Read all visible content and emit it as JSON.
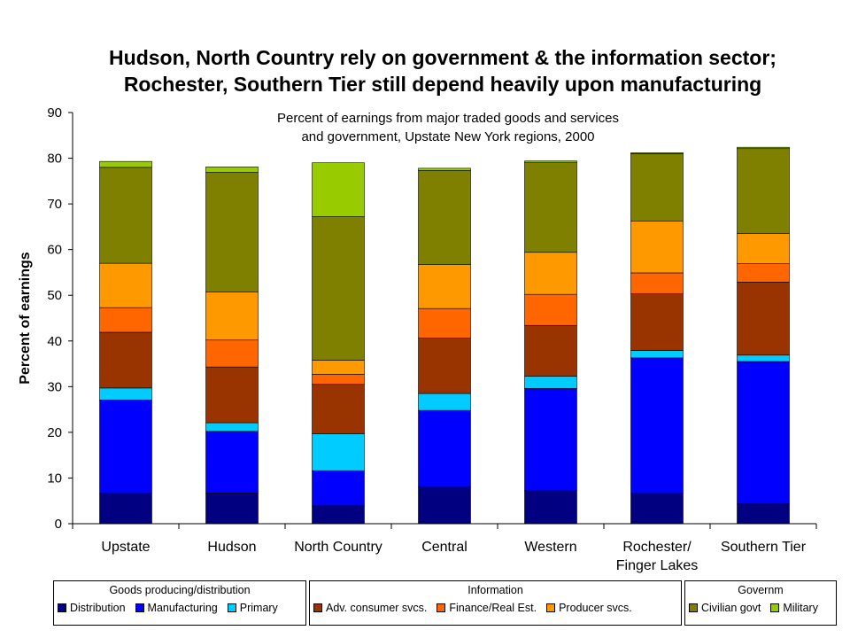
{
  "title": {
    "line1": "Hudson, North Country rely on government & the information sector;",
    "line2": "Rochester, Southern Tier still depend heavily upon manufacturing"
  },
  "chart_data": {
    "type": "bar",
    "stacked": true,
    "subtitle_line1": "Percent of earnings from major traded goods and services",
    "subtitle_line2": "and government, Upstate New York regions, 2000",
    "ylabel": "Percent of earnings",
    "ylim": [
      0,
      90
    ],
    "yticks": [
      0,
      10,
      20,
      30,
      40,
      50,
      60,
      70,
      80,
      90
    ],
    "categories": [
      "Upstate",
      "Hudson",
      "North Country",
      "Central",
      "Western",
      "Rochester/ Finger Lakes",
      "Southern Tier"
    ],
    "category_lines": [
      [
        "Upstate"
      ],
      [
        "Hudson"
      ],
      [
        "North Country"
      ],
      [
        "Central"
      ],
      [
        "Western"
      ],
      [
        "Rochester/",
        "Finger Lakes"
      ],
      [
        "Southern Tier"
      ]
    ],
    "series": [
      {
        "name": "Distribution",
        "color": "#000080",
        "values": [
          6.6,
          6.7,
          3.9,
          8.1,
          7.3,
          6.6,
          4.3
        ]
      },
      {
        "name": "Manufacturing",
        "color": "#0000FF",
        "values": [
          20.5,
          13.5,
          7.7,
          16.7,
          22.3,
          29.7,
          31.2
        ]
      },
      {
        "name": "Primary",
        "color": "#00CCFF",
        "values": [
          2.6,
          1.9,
          8.1,
          3.7,
          2.7,
          1.6,
          1.4
        ]
      },
      {
        "name": "Adv. consumer svcs.",
        "color": "#993300",
        "values": [
          12.2,
          12.2,
          10.8,
          12.1,
          11.1,
          12.4,
          16.0
        ]
      },
      {
        "name": "Finance/Real Est.",
        "color": "#FF6600",
        "values": [
          5.4,
          5.9,
          2.2,
          6.5,
          6.8,
          4.6,
          4.0
        ]
      },
      {
        "name": "Producer svcs.",
        "color": "#FF9900",
        "values": [
          9.7,
          10.5,
          3.1,
          9.6,
          9.2,
          11.3,
          6.6
        ]
      },
      {
        "name": "Civilian govt",
        "color": "#808000",
        "values": [
          21.0,
          26.2,
          31.4,
          20.6,
          19.7,
          14.8,
          18.6
        ]
      },
      {
        "name": "Military",
        "color": "#99CC00",
        "values": [
          1.3,
          1.2,
          11.8,
          0.5,
          0.3,
          0.2,
          0.3
        ]
      }
    ],
    "legend_groups": [
      {
        "title": "Goods producing/distribution",
        "items": [
          0,
          1,
          2
        ]
      },
      {
        "title": "Information",
        "items": [
          3,
          4,
          5
        ]
      },
      {
        "title": "Governm",
        "items": [
          6,
          7
        ]
      }
    ],
    "legend_position": "bottom"
  }
}
